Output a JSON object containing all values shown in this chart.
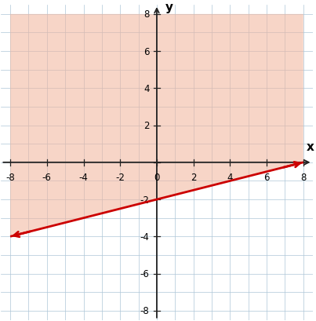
{
  "xlim": [
    -8.5,
    8.5
  ],
  "ylim": [
    -8.5,
    8.5
  ],
  "data_xlim": [
    -8,
    8
  ],
  "data_ylim": [
    -8,
    8
  ],
  "xticks": [
    -8,
    -6,
    -4,
    -2,
    0,
    2,
    4,
    6,
    8
  ],
  "yticks": [
    -8,
    -6,
    -4,
    -2,
    2,
    4,
    6,
    8
  ],
  "xlabel": "x",
  "ylabel": "y",
  "line_color": "#cc0000",
  "shade_color": "#f2b49a",
  "shade_alpha": 0.55,
  "grid_color": "#aec6d8",
  "axis_color": "#222222",
  "boundary_note": "x - 4y = 8, so y = x/4 - 2"
}
